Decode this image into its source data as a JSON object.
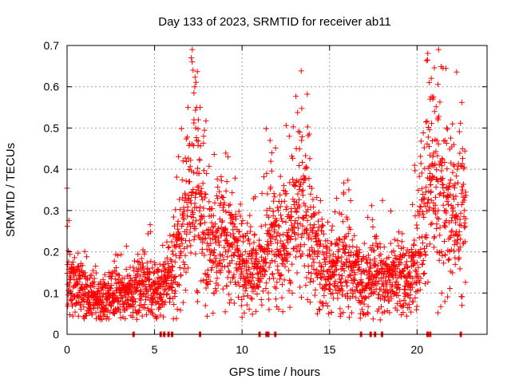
{
  "chart_data": {
    "type": "scatter",
    "title": "Day 133 of 2023, SRMTID for receiver ab11",
    "xlabel": "GPS time / hours",
    "ylabel": "SRMTID / TECUs",
    "xlim": [
      0,
      24
    ],
    "ylim": [
      0,
      0.7
    ],
    "xticks": [
      0,
      5,
      10,
      15,
      20
    ],
    "xtick_labels": [
      "0",
      "5",
      "10",
      "15",
      "20"
    ],
    "yticks": [
      0,
      0.1,
      0.2,
      0.3,
      0.4,
      0.5,
      0.6,
      0.7
    ],
    "ytick_labels": [
      "0",
      "0.1",
      "0.2",
      "0.3",
      "0.4",
      "0.5",
      "0.6",
      "0.7"
    ],
    "grid": true,
    "marker": "+",
    "color": "#ff0000",
    "series": [
      {
        "name": "SRMTID",
        "profile": [
          [
            0.0,
            0.11
          ],
          [
            0.5,
            0.12
          ],
          [
            1.0,
            0.1
          ],
          [
            1.5,
            0.09
          ],
          [
            2.0,
            0.08
          ],
          [
            2.5,
            0.09
          ],
          [
            3.0,
            0.1
          ],
          [
            3.5,
            0.1
          ],
          [
            4.0,
            0.11
          ],
          [
            4.5,
            0.13
          ],
          [
            5.0,
            0.1
          ],
          [
            5.5,
            0.11
          ],
          [
            6.0,
            0.15
          ],
          [
            6.5,
            0.22
          ],
          [
            7.0,
            0.32
          ],
          [
            7.3,
            0.38
          ],
          [
            7.6,
            0.28
          ],
          [
            8.0,
            0.22
          ],
          [
            8.5,
            0.2
          ],
          [
            9.0,
            0.23
          ],
          [
            9.5,
            0.2
          ],
          [
            10.0,
            0.18
          ],
          [
            10.5,
            0.17
          ],
          [
            11.0,
            0.15
          ],
          [
            11.5,
            0.22
          ],
          [
            12.0,
            0.24
          ],
          [
            12.5,
            0.25
          ],
          [
            13.0,
            0.28
          ],
          [
            13.5,
            0.28
          ],
          [
            14.0,
            0.22
          ],
          [
            14.5,
            0.18
          ],
          [
            15.0,
            0.14
          ],
          [
            15.5,
            0.16
          ],
          [
            16.0,
            0.18
          ],
          [
            16.5,
            0.15
          ],
          [
            17.0,
            0.12
          ],
          [
            17.5,
            0.15
          ],
          [
            18.0,
            0.13
          ],
          [
            18.5,
            0.14
          ],
          [
            19.0,
            0.15
          ],
          [
            19.5,
            0.12
          ],
          [
            20.0,
            0.2
          ],
          [
            20.5,
            0.3
          ],
          [
            21.0,
            0.38
          ],
          [
            21.5,
            0.3
          ],
          [
            22.0,
            0.28
          ],
          [
            22.5,
            0.3
          ],
          [
            22.8,
            0.26
          ]
        ],
        "peaks": [
          [
            7.1,
            0.67
          ],
          [
            7.15,
            0.66
          ],
          [
            7.2,
            0.64
          ],
          [
            7.3,
            0.6
          ],
          [
            7.25,
            0.585
          ],
          [
            7.4,
            0.55
          ],
          [
            7.5,
            0.52
          ],
          [
            7.6,
            0.55
          ],
          [
            7.35,
            0.5
          ],
          [
            7.8,
            0.48
          ],
          [
            9.2,
            0.43
          ],
          [
            11.6,
            0.47
          ],
          [
            11.7,
            0.44
          ],
          [
            13.3,
            0.49
          ],
          [
            13.4,
            0.47
          ],
          [
            13.1,
            0.45
          ],
          [
            15.8,
            0.34
          ],
          [
            20.6,
            0.665
          ],
          [
            20.7,
            0.61
          ],
          [
            20.8,
            0.575
          ],
          [
            20.75,
            0.57
          ],
          [
            20.9,
            0.57
          ],
          [
            21.0,
            0.54
          ],
          [
            21.2,
            0.52
          ],
          [
            21.7,
            0.5
          ],
          [
            21.6,
            0.47
          ],
          [
            22.1,
            0.46
          ],
          [
            22.3,
            0.4
          ],
          [
            22.6,
            0.35
          ]
        ],
        "zeros": [
          3.8,
          5.35,
          5.55,
          5.8,
          6.0,
          7.6,
          11.0,
          11.4,
          11.5,
          11.9,
          16.8,
          17.35,
          17.6,
          18.0,
          20.6,
          20.75,
          22.5
        ]
      }
    ]
  }
}
